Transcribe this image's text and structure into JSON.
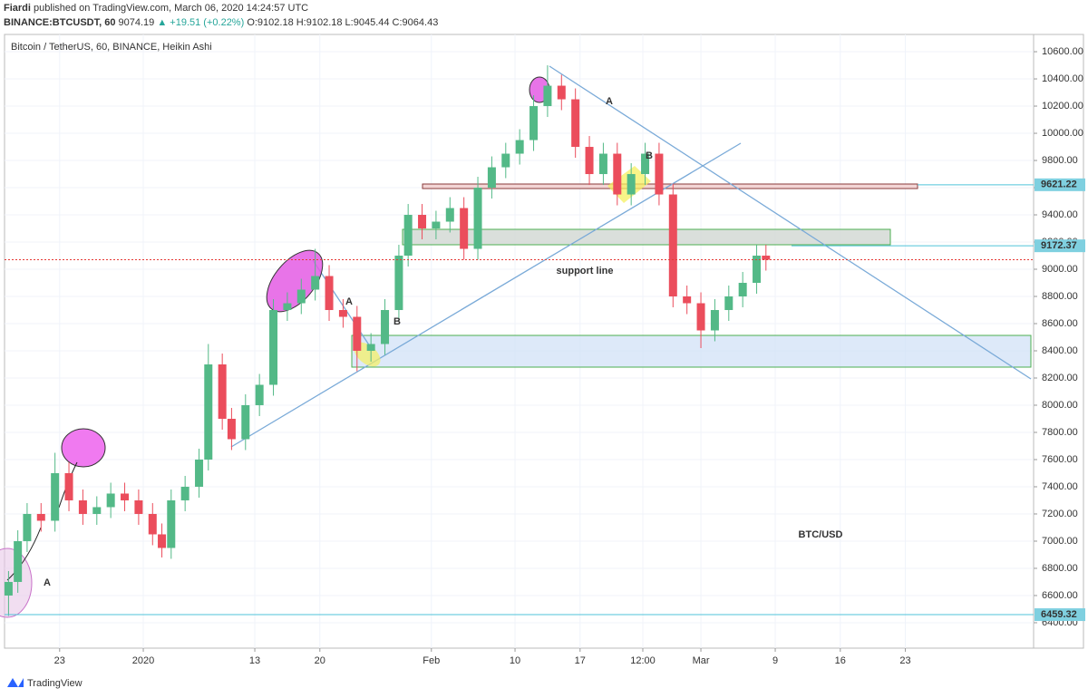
{
  "header": {
    "author": "Fiardi",
    "published": "published on TradingView.com, March 06, 2020 14:24:57 UTC",
    "symbol": "BINANCE:BTCUSDT, 60",
    "quote": "9074.19",
    "change": "▲ +19.51 (+0.22%)",
    "ohlc": "O:9102.18 H:9102.18 L:9045.44 C:9064.43"
  },
  "footer": "TradingView",
  "chart_data": {
    "type": "candlestick",
    "title": "Bitcoin / TetherUS, 60, BINANCE, Heikin Ashi",
    "up_color": "#53b987",
    "down_color": "#eb4d5c",
    "grid": true,
    "xlim": [
      -14.93,
      95.8
    ],
    "xticks": [
      {
        "value": -9,
        "label": "23"
      },
      {
        "value": 0,
        "label": "2020"
      },
      {
        "value": 12,
        "label": "13"
      },
      {
        "value": 19,
        "label": "20"
      },
      {
        "value": 31,
        "label": "Feb"
      },
      {
        "value": 40,
        "label": "10"
      },
      {
        "value": 47,
        "label": "17"
      },
      {
        "value": 53.75,
        "label": "12:00"
      },
      {
        "value": 60,
        "label": "Mar"
      },
      {
        "value": 68,
        "label": "9"
      },
      {
        "value": 75,
        "label": "16"
      },
      {
        "value": 82,
        "label": "23"
      }
    ],
    "ylim": [
      6213,
      10727
    ],
    "yticks": [
      {
        "value": 6400,
        "label": "6400.00"
      },
      {
        "value": 6600,
        "label": "6600.00"
      },
      {
        "value": 6800,
        "label": "6800.00"
      },
      {
        "value": 7000,
        "label": "7000.00"
      },
      {
        "value": 7200,
        "label": "7200.00"
      },
      {
        "value": 7400,
        "label": "7400.00"
      },
      {
        "value": 7600,
        "label": "7600.00"
      },
      {
        "value": 7800,
        "label": "7800.00"
      },
      {
        "value": 8000,
        "label": "8000.00"
      },
      {
        "value": 8200,
        "label": "8200.00"
      },
      {
        "value": 8400,
        "label": "8400.00"
      },
      {
        "value": 8600,
        "label": "8600.00"
      },
      {
        "value": 8800,
        "label": "8800.00"
      },
      {
        "value": 9000,
        "label": "9000.00"
      },
      {
        "value": 9200,
        "label": "9200.00"
      },
      {
        "value": 9400,
        "label": "9400.00"
      },
      {
        "value": 9600,
        "label": "9600.00"
      },
      {
        "value": 9800,
        "label": "9800.00"
      },
      {
        "value": 10000,
        "label": "10000.00"
      },
      {
        "value": 10200,
        "label": "10200.00"
      },
      {
        "value": 10400,
        "label": "10400.00"
      },
      {
        "value": 10600,
        "label": "10600.00"
      }
    ],
    "price_lines": [
      9621.22,
      9172.37,
      6459.32
    ],
    "annotations": [
      "A",
      "B",
      "A",
      "B",
      "support line",
      "BTC/USD",
      "A"
    ],
    "candles": [
      [
        -14.5,
        6600,
        6780,
        6450,
        6700
      ],
      [
        -13.5,
        6700,
        7080,
        6620,
        7000
      ],
      [
        -12.5,
        7000,
        7280,
        6920,
        7200
      ],
      [
        -11,
        7200,
        7280,
        7070,
        7150
      ],
      [
        -9.5,
        7150,
        7650,
        7070,
        7500
      ],
      [
        -8,
        7500,
        7580,
        7220,
        7300
      ],
      [
        -6.5,
        7300,
        7380,
        7120,
        7200
      ],
      [
        -5,
        7200,
        7330,
        7120,
        7250
      ],
      [
        -3.5,
        7250,
        7430,
        7170,
        7350
      ],
      [
        -2,
        7350,
        7430,
        7220,
        7300
      ],
      [
        -0.5,
        7300,
        7380,
        7120,
        7200
      ],
      [
        1,
        7200,
        7280,
        6970,
        7050
      ],
      [
        2,
        7050,
        7130,
        6880,
        6950
      ],
      [
        3,
        6950,
        7380,
        6870,
        7300
      ],
      [
        4.5,
        7300,
        7480,
        7220,
        7400
      ],
      [
        6,
        7400,
        7680,
        7320,
        7600
      ],
      [
        7,
        7600,
        8450,
        7520,
        8300
      ],
      [
        8.5,
        8300,
        8380,
        7820,
        7900
      ],
      [
        9.5,
        7900,
        7980,
        7670,
        7750
      ],
      [
        11,
        7750,
        8080,
        7670,
        8000
      ],
      [
        12.5,
        8000,
        8230,
        7920,
        8150
      ],
      [
        14,
        8150,
        8780,
        8070,
        8700
      ],
      [
        15.5,
        8700,
        8830,
        8620,
        8750
      ],
      [
        17,
        8750,
        8930,
        8670,
        8850
      ],
      [
        18.5,
        8850,
        9150,
        8770,
        8950
      ],
      [
        20,
        8950,
        9030,
        8620,
        8700
      ],
      [
        21.5,
        8700,
        8780,
        8570,
        8650
      ],
      [
        23,
        8650,
        8730,
        8250,
        8400
      ],
      [
        24.5,
        8400,
        8530,
        8320,
        8450
      ],
      [
        26,
        8450,
        8780,
        8370,
        8700
      ],
      [
        27.5,
        8700,
        9180,
        8620,
        9100
      ],
      [
        28.5,
        9100,
        9480,
        9020,
        9400
      ],
      [
        30,
        9400,
        9480,
        9220,
        9300
      ],
      [
        31.5,
        9300,
        9430,
        9220,
        9350
      ],
      [
        33,
        9350,
        9530,
        9270,
        9450
      ],
      [
        34.5,
        9450,
        9530,
        9070,
        9150
      ],
      [
        36,
        9150,
        9680,
        9070,
        9600
      ],
      [
        37.5,
        9600,
        9830,
        9520,
        9750
      ],
      [
        39,
        9750,
        9930,
        9670,
        9850
      ],
      [
        40.5,
        9850,
        10030,
        9770,
        9950
      ],
      [
        42,
        9950,
        10280,
        9870,
        10200
      ],
      [
        43.5,
        10200,
        10500,
        10120,
        10350
      ],
      [
        45,
        10350,
        10430,
        10170,
        10250
      ],
      [
        46.5,
        10250,
        10330,
        9820,
        9900
      ],
      [
        48,
        9900,
        9980,
        9620,
        9700
      ],
      [
        49.5,
        9700,
        9930,
        9620,
        9850
      ],
      [
        51,
        9850,
        9930,
        9470,
        9550
      ],
      [
        52.5,
        9550,
        9780,
        9470,
        9700
      ],
      [
        54,
        9700,
        9930,
        9620,
        9850
      ],
      [
        55.5,
        9850,
        9930,
        9470,
        9550
      ],
      [
        57,
        9550,
        9630,
        8720,
        8800
      ],
      [
        58.5,
        8800,
        8880,
        8670,
        8750
      ],
      [
        60,
        8750,
        8830,
        8420,
        8550
      ],
      [
        61.5,
        8550,
        8780,
        8470,
        8700
      ],
      [
        63,
        8700,
        8880,
        8620,
        8800
      ],
      [
        64.5,
        8800,
        8980,
        8720,
        8900
      ],
      [
        66,
        8900,
        9180,
        8820,
        9100
      ],
      [
        67,
        9100,
        9180,
        8990,
        9070
      ]
    ]
  }
}
